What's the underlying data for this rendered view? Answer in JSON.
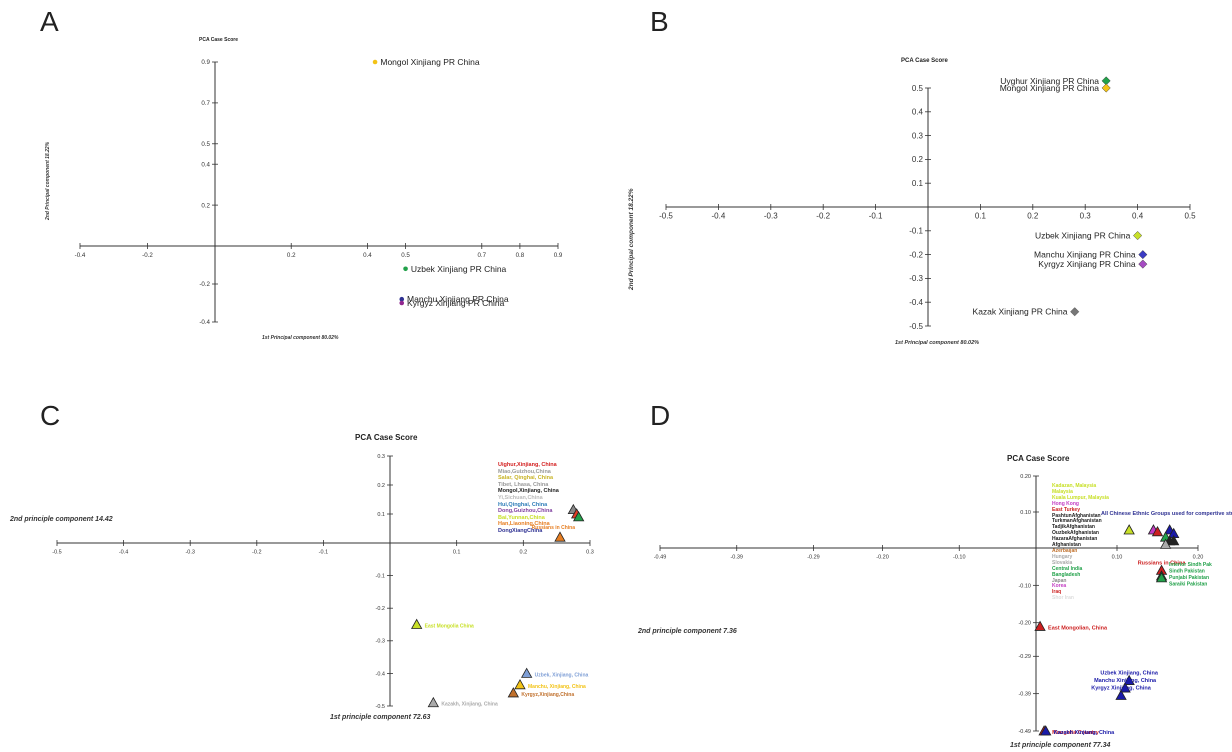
{
  "figure": {
    "panels": [
      "A",
      "B",
      "C",
      "D"
    ]
  },
  "chart_data": [
    {
      "panel": "A",
      "type": "scatter",
      "title": "PCA Case Score",
      "xlabel": "1st Principal component 80.02%",
      "ylabel": "2nd Principal component 18.22%",
      "x_ticks": [
        "-0.4",
        "-0.2",
        "0.2",
        "0.4",
        "0.5",
        "0.7",
        "0.8",
        "0.9"
      ],
      "y_ticks": [
        "0.9",
        "0.7",
        "0.5",
        "0.4",
        "0.2",
        "-0.2",
        "-0.4"
      ],
      "xlim": [
        -0.4,
        0.9
      ],
      "ylim": [
        -0.4,
        0.9
      ],
      "points": [
        {
          "label": "Mongol Xinjiang PR China",
          "x": 0.42,
          "y": 0.9,
          "color": "#f3c316"
        },
        {
          "label": "Uzbek Xinjiang PR China",
          "x": 0.5,
          "y": -0.12,
          "color": "#22a14a"
        },
        {
          "label": "Manchu Xinjiang PR China",
          "x": 0.49,
          "y": -0.28,
          "color": "#2e3192"
        },
        {
          "label": "Kyrgyz Xinjiang PR China",
          "x": 0.49,
          "y": -0.3,
          "color": "#92278f"
        }
      ]
    },
    {
      "panel": "B",
      "type": "scatter",
      "title": "PCA Case Score",
      "xlabel": "1st Principal component 80.02%",
      "ylabel": "2nd Principal component 18.22%",
      "x_ticks": [
        "-0.5",
        "-0.4",
        "-0.3",
        "-0.2",
        "-0.1",
        "0.1",
        "0.2",
        "0.3",
        "0.4",
        "0.5"
      ],
      "y_ticks": [
        "0.5",
        "0.4",
        "0.3",
        "0.2",
        "0.1",
        "-0.1",
        "-0.2",
        "-0.3",
        "-0.4",
        "-0.5"
      ],
      "xlim": [
        -0.5,
        0.5
      ],
      "ylim": [
        -0.5,
        0.5
      ],
      "points": [
        {
          "label": "Uyghur Xinjiang PR China",
          "x": 0.34,
          "y": 0.53,
          "color": "#22a14a"
        },
        {
          "label": "Mongol Xinjiang PR China",
          "x": 0.34,
          "y": 0.5,
          "color": "#f3c316"
        },
        {
          "label": "Uzbek Xinjiang PR China",
          "x": 0.4,
          "y": -0.12,
          "color": "#c8e028"
        },
        {
          "label": "Manchu Xinjiang PR China",
          "x": 0.41,
          "y": -0.2,
          "color": "#3b3bc4"
        },
        {
          "label": "Kyrgyz Xinjiang PR China",
          "x": 0.41,
          "y": -0.24,
          "color": "#a64bc2"
        },
        {
          "label": "Kazak Xinjiang PR China",
          "x": 0.28,
          "y": -0.44,
          "color": "#777777"
        }
      ]
    },
    {
      "panel": "C",
      "type": "scatter",
      "title": "PCA Case Score",
      "xlabel": "1st principle component 72.63",
      "ylabel": "2nd principle component 14.42",
      "x_ticks": [
        "-0.5",
        "-0.4",
        "-0.3",
        "-0.2",
        "-0.1",
        "0.1",
        "0.2",
        "0.3"
      ],
      "y_ticks": [
        "0.3",
        "0.2",
        "0.1",
        "-0.1",
        "-0.2",
        "-0.3",
        "-0.4",
        "-0.5"
      ],
      "xlim": [
        -0.5,
        0.3
      ],
      "ylim": [
        -0.5,
        0.3
      ],
      "points": [
        {
          "label": "Russians in China",
          "x": 0.255,
          "y": 0.02,
          "color": "#e67e22"
        },
        {
          "label": "East Mongolia China",
          "x": 0.04,
          "y": -0.25,
          "color": "#c8e028"
        },
        {
          "label": "Uzbek, Xinjiang, China",
          "x": 0.205,
          "y": -0.4,
          "color": "#7f9fd6"
        },
        {
          "label": "Manchu, Xinjiang, China",
          "x": 0.195,
          "y": -0.435,
          "color": "#f3c316"
        },
        {
          "label": "Kyrgyz,Xinjiang,China",
          "x": 0.185,
          "y": -0.46,
          "color": "#c0702c"
        },
        {
          "label": "Kazakh, Xinjiang, China",
          "x": 0.065,
          "y": -0.49,
          "color": "#aaaaaa"
        },
        {
          "label": "",
          "x": 0.275,
          "y": 0.115,
          "color": "#888888"
        },
        {
          "label": "",
          "x": 0.28,
          "y": 0.1,
          "color": "#e03b24"
        },
        {
          "label": "",
          "x": 0.283,
          "y": 0.09,
          "color": "#22a14a"
        }
      ],
      "legend": [
        {
          "text": "Uighur,Xinjiang, China",
          "color": "#d32020"
        },
        {
          "text": "Miao,Guizhou,China",
          "color": "#999999"
        },
        {
          "text": "Salar, Qinghai, China",
          "color": "#c8b428"
        },
        {
          "text": "Tibet, Lhasa, China",
          "color": "#999999"
        },
        {
          "text": "Mongol,Xinjiang, China",
          "color": "#222222"
        },
        {
          "text": "Yi,Sichuan,China",
          "color": "#bbbbbb"
        },
        {
          "text": "Hui,Qinghai, China",
          "color": "#2e7db8"
        },
        {
          "text": "Dong,Guizhou,China",
          "color": "#7f3f9f"
        },
        {
          "text": "Bai,Yunnan,China",
          "color": "#c8e028"
        },
        {
          "text": "Han,Liaoning,China",
          "color": "#e67e22"
        },
        {
          "text": "DongXiangChina",
          "color": "#2e3192"
        }
      ]
    },
    {
      "panel": "D",
      "type": "scatter",
      "title": "PCA Case Score",
      "xlabel": "1st principle component 77.34",
      "ylabel": "2nd principle component 7.36",
      "x_ticks": [
        "-0.49",
        "-0.39",
        "-0.29",
        "-0.20",
        "-0.10",
        "0.10",
        "0.20"
      ],
      "y_ticks": [
        "0.20",
        "0.10",
        "-0.10",
        "-0.20",
        "-0.29",
        "-0.39",
        "-0.49"
      ],
      "xlim": [
        -0.49,
        0.2
      ],
      "ylim": [
        -0.49,
        0.2
      ],
      "points": [
        {
          "label": "East Mongolian, China",
          "x": 0.005,
          "y": -0.21,
          "color": "#cc1f1f"
        },
        {
          "label": "Uzbek Xinjiang, China",
          "x": 0.115,
          "y": -0.355,
          "color": "#1a1aa8"
        },
        {
          "label": "Manchu Xinjiang, China",
          "x": 0.11,
          "y": -0.375,
          "color": "#1a1aa8"
        },
        {
          "label": "Kyrgyz Xinjiang, China",
          "x": 0.105,
          "y": -0.395,
          "color": "#1a1aa8"
        },
        {
          "label": "Mongolia Country",
          "x": 0.01,
          "y": -0.49,
          "color": "#cc1f1f"
        },
        {
          "label": "Kazakh Xinjiang, China",
          "x": 0.012,
          "y": -0.49,
          "color": "#1a1aa8"
        },
        {
          "label": "Russians in China",
          "x": 0.155,
          "y": -0.06,
          "color": "#cc1f1f"
        },
        {
          "label": "",
          "x": 0.155,
          "y": -0.075,
          "color": "#22a14a"
        },
        {
          "label": "",
          "x": 0.155,
          "y": -0.08,
          "color": "#22a14a"
        },
        {
          "label": "",
          "x": 0.115,
          "y": 0.05,
          "color": "#c8e028"
        },
        {
          "label": "",
          "x": 0.145,
          "y": 0.05,
          "color": "#c23bc2"
        },
        {
          "label": "",
          "x": 0.15,
          "y": 0.045,
          "color": "#cc1f1f"
        },
        {
          "label": "",
          "x": 0.165,
          "y": 0.05,
          "color": "#1a1aa8"
        },
        {
          "label": "",
          "x": 0.17,
          "y": 0.04,
          "color": "#1a1aa8"
        },
        {
          "label": "",
          "x": 0.16,
          "y": 0.03,
          "color": "#22a14a"
        },
        {
          "label": "",
          "x": 0.165,
          "y": 0.02,
          "color": "#222222"
        },
        {
          "label": "",
          "x": 0.17,
          "y": 0.02,
          "color": "#222222"
        },
        {
          "label": "",
          "x": 0.16,
          "y": 0.01,
          "color": "#aaaaaa"
        }
      ],
      "annotations": [
        {
          "text": "All Chinese Ethnic Groups  used for compertive study",
          "color": "#2e3192"
        },
        {
          "text": "Interior Sindh Pak",
          "color": "#22a14a"
        },
        {
          "text": "Sindh Pakistan",
          "color": "#22a14a"
        },
        {
          "text": "Punjabi Pakistan",
          "color": "#22a14a"
        },
        {
          "text": "Saraiki Pakistan",
          "color": "#22a14a"
        }
      ],
      "legend": [
        {
          "text": "Kadazan, Malaysia",
          "color": "#c8e028"
        },
        {
          "text": "Malaysia",
          "color": "#c8e028"
        },
        {
          "text": "Kuala Lumpur, Malaysia",
          "color": "#c8e028"
        },
        {
          "text": "Hong Kong",
          "color": "#c23bc2"
        },
        {
          "text": "East Turkey",
          "color": "#cc1f1f"
        },
        {
          "text": "PashtunAfghanistan",
          "color": "#222222"
        },
        {
          "text": "TurkmanAfghanistan",
          "color": "#222222"
        },
        {
          "text": "TadjikAfghanistan",
          "color": "#222222"
        },
        {
          "text": "OuzbekAfghanistan",
          "color": "#222222"
        },
        {
          "text": "HazaraAfghanistan",
          "color": "#222222"
        },
        {
          "text": "Afghanistan",
          "color": "#222222"
        },
        {
          "text": "Azerbaijan",
          "color": "#c0702c"
        },
        {
          "text": "Hungary",
          "color": "#aaaaaa"
        },
        {
          "text": "Slovakia",
          "color": "#aaaaaa"
        },
        {
          "text": "Central India",
          "color": "#22a14a"
        },
        {
          "text": "Bangladesh",
          "color": "#22a14a"
        },
        {
          "text": "Japan",
          "color": "#888888"
        },
        {
          "text": "Korea",
          "color": "#c23bc2"
        },
        {
          "text": "Iraq",
          "color": "#cc1f1f"
        },
        {
          "text": "Shor Iran",
          "color": "#dddddd"
        }
      ]
    }
  ]
}
